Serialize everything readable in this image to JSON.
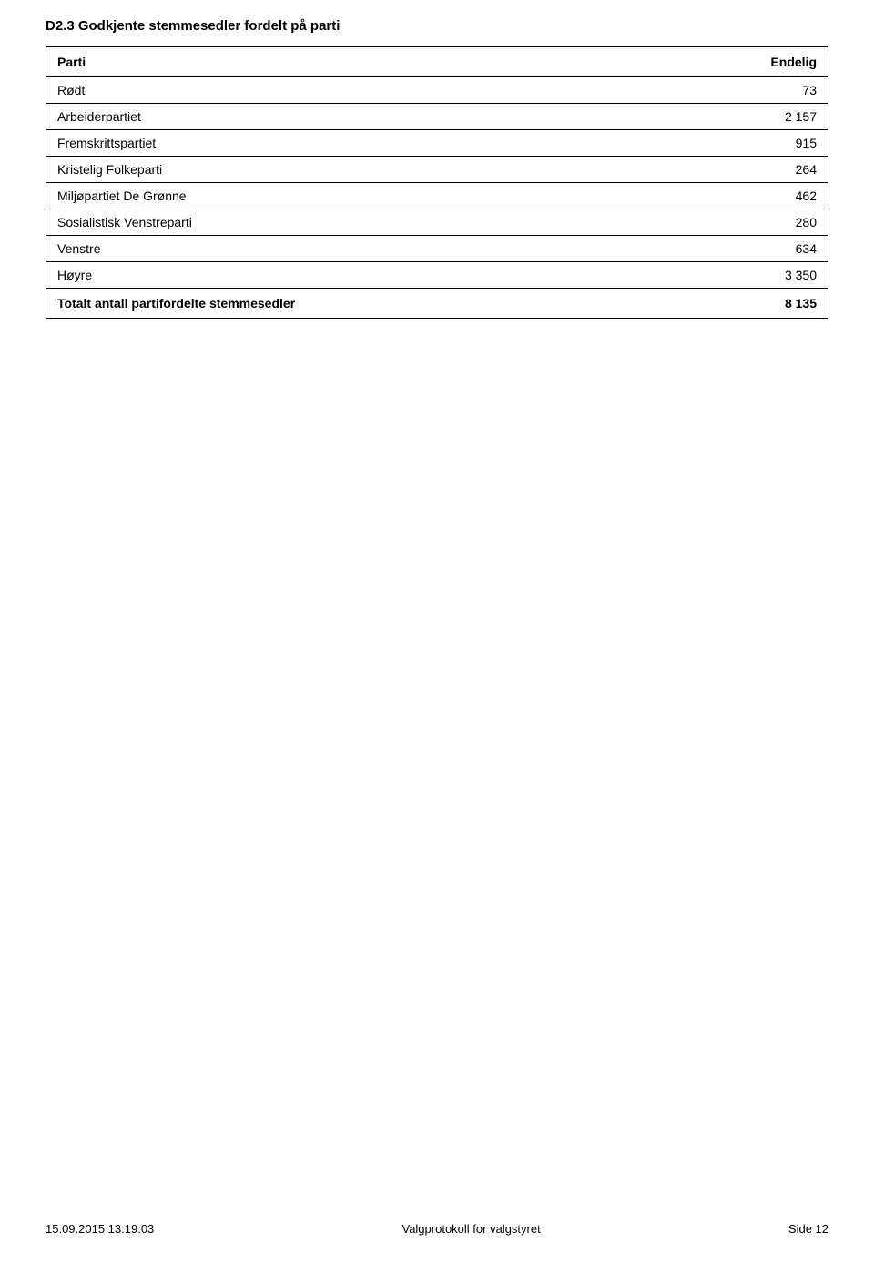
{
  "section": {
    "title": "D2.3 Godkjente stemmesedler fordelt på parti"
  },
  "table": {
    "headers": {
      "party": "Parti",
      "value": "Endelig"
    },
    "rows": [
      {
        "party": "Rødt",
        "value": "73"
      },
      {
        "party": "Arbeiderpartiet",
        "value": "2 157"
      },
      {
        "party": "Fremskrittspartiet",
        "value": "915"
      },
      {
        "party": "Kristelig Folkeparti",
        "value": "264"
      },
      {
        "party": "Miljøpartiet De Grønne",
        "value": "462"
      },
      {
        "party": "Sosialistisk Venstreparti",
        "value": "280"
      },
      {
        "party": "Venstre",
        "value": "634"
      },
      {
        "party": "Høyre",
        "value": "3 350"
      }
    ],
    "total": {
      "label": "Totalt antall partifordelte stemmesedler",
      "value": "8 135"
    }
  },
  "footer": {
    "timestamp": "15.09.2015 13:19:03",
    "center": "Valgprotokoll for valgstyret",
    "page": "Side 12"
  },
  "styling": {
    "background_color": "#ffffff",
    "text_color": "#000000",
    "border_color": "#000000",
    "title_fontsize": 15,
    "header_fontsize": 14,
    "body_fontsize": 14,
    "footer_fontsize": 13
  }
}
